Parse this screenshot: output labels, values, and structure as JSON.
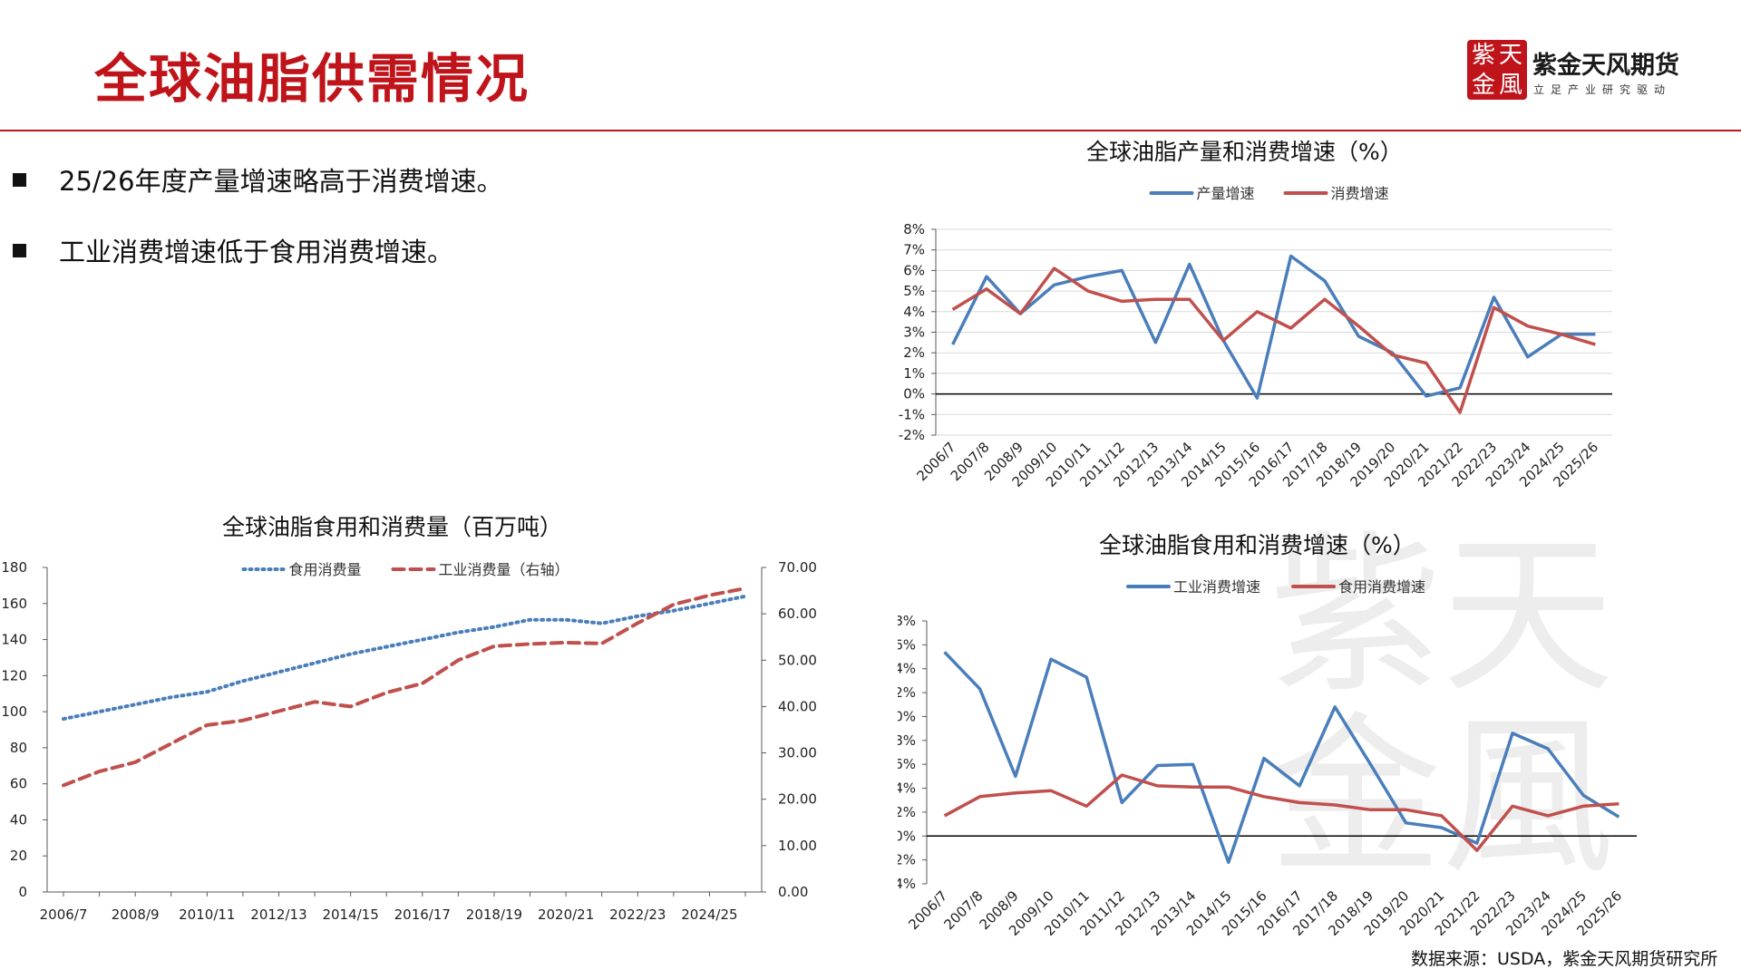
{
  "header": {
    "title": "全球油脂供需情况",
    "brand_logo_text": "紫金天風",
    "brand_name": "紫金天风期货",
    "brand_slogan": "立足产业研究驱动"
  },
  "bullets": [
    "25/26年度产量增速略高于消费增速。",
    "工业消费增速低于食用消费增速。"
  ],
  "source": "数据来源：USDA，紫金天风期货研究所",
  "colors": {
    "blue": "#4a7ebb",
    "red": "#c0504d",
    "brand": "#c0141b"
  },
  "chart_data": [
    {
      "id": "prod-cons",
      "type": "line",
      "title": "全球油脂产量和消费增速（%）",
      "categories": [
        "2006/7",
        "2007/8",
        "2008/9",
        "2009/10",
        "2010/11",
        "2011/12",
        "2012/13",
        "2013/14",
        "2014/15",
        "2015/16",
        "2016/17",
        "2017/18",
        "2018/19",
        "2019/20",
        "2020/21",
        "2021/22",
        "2022/23",
        "2023/24",
        "2024/25",
        "2025/26"
      ],
      "series": [
        {
          "name": "产量增速",
          "color": "#4a7ebb",
          "dash": "solid",
          "values": [
            2.4,
            5.7,
            3.9,
            5.3,
            5.7,
            6.0,
            2.5,
            6.3,
            2.6,
            -0.2,
            6.7,
            5.5,
            2.8,
            2.0,
            -0.1,
            0.3,
            4.7,
            1.8,
            2.9,
            2.9
          ]
        },
        {
          "name": "消费增速",
          "color": "#c0504d",
          "dash": "solid",
          "values": [
            4.1,
            5.1,
            3.9,
            6.1,
            5.0,
            4.5,
            4.6,
            4.6,
            2.6,
            4.0,
            3.2,
            4.6,
            3.3,
            1.9,
            1.5,
            -0.9,
            4.2,
            3.3,
            2.9,
            2.4
          ]
        }
      ],
      "y_axis": {
        "min": -2,
        "max": 8,
        "step": 1,
        "format": "percent"
      },
      "legend": "top-center",
      "grid": true
    },
    {
      "id": "food-ind",
      "type": "line",
      "title": "全球油脂食用和消费增速（%）",
      "categories": [
        "2006/7",
        "2007/8",
        "2008/9",
        "2009/10",
        "2010/11",
        "2011/12",
        "2012/13",
        "2013/14",
        "2014/15",
        "2015/16",
        "2016/17",
        "2017/18",
        "2018/19",
        "2019/20",
        "2020/21",
        "2021/22",
        "2022/23",
        "2023/24",
        "2024/25",
        "2025/26"
      ],
      "series": [
        {
          "name": "工业消费增速",
          "color": "#4a7ebb",
          "dash": "solid",
          "values": [
            15.4,
            12.3,
            5.0,
            14.8,
            13.3,
            2.8,
            5.9,
            6.0,
            -2.2,
            6.5,
            4.2,
            10.8,
            6.0,
            1.1,
            0.7,
            -0.6,
            8.6,
            7.3,
            3.4,
            1.6
          ]
        },
        {
          "name": "食用消费增速",
          "color": "#c0504d",
          "dash": "solid",
          "values": [
            1.7,
            3.3,
            3.6,
            3.8,
            2.5,
            5.1,
            4.2,
            4.1,
            4.1,
            3.3,
            2.8,
            2.6,
            2.2,
            2.2,
            1.7,
            -1.2,
            2.5,
            1.7,
            2.5,
            2.7
          ]
        }
      ],
      "y_axis": {
        "min": -4,
        "max": 18,
        "step": 2,
        "format": "percent"
      },
      "legend": "top-center",
      "grid": false
    },
    {
      "id": "volume",
      "type": "line",
      "title": "全球油脂食用和消费量（百万吨）",
      "categories": [
        "2006/7",
        "2007/8",
        "2008/9",
        "2009/10",
        "2010/11",
        "2011/12",
        "2012/13",
        "2013/14",
        "2014/15",
        "2015/16",
        "2016/17",
        "2017/18",
        "2018/19",
        "2019/20",
        "2020/21",
        "2021/22",
        "2022/23",
        "2023/24",
        "2024/25",
        "2025/26"
      ],
      "x_tick_labels": [
        "2006/7",
        "2008/9",
        "2010/11",
        "2012/13",
        "2014/15",
        "2016/17",
        "2018/19",
        "2020/21",
        "2022/23",
        "2024/25"
      ],
      "series": [
        {
          "name": "食用消费量",
          "color": "#4a7ebb",
          "dash": "dotted",
          "axis": "left",
          "values": [
            96,
            100,
            104,
            108,
            111,
            117,
            122,
            127,
            132,
            136,
            140,
            144,
            147,
            151,
            151,
            149,
            153,
            156,
            160,
            164
          ]
        },
        {
          "name": "工业消费量（右轴）",
          "color": "#c0504d",
          "dash": "dashed",
          "axis": "right",
          "values": [
            23,
            26,
            28,
            32,
            36,
            37,
            39,
            41,
            40,
            43,
            45,
            50,
            53,
            53.5,
            53.8,
            53.6,
            58,
            62,
            64,
            65.5
          ]
        }
      ],
      "y_axis_left": {
        "min": 0,
        "max": 180,
        "step": 20
      },
      "y_axis_right": {
        "min": 0,
        "max": 70,
        "step": 10,
        "decimals": 2
      },
      "legend": "top-center",
      "grid": false
    }
  ]
}
